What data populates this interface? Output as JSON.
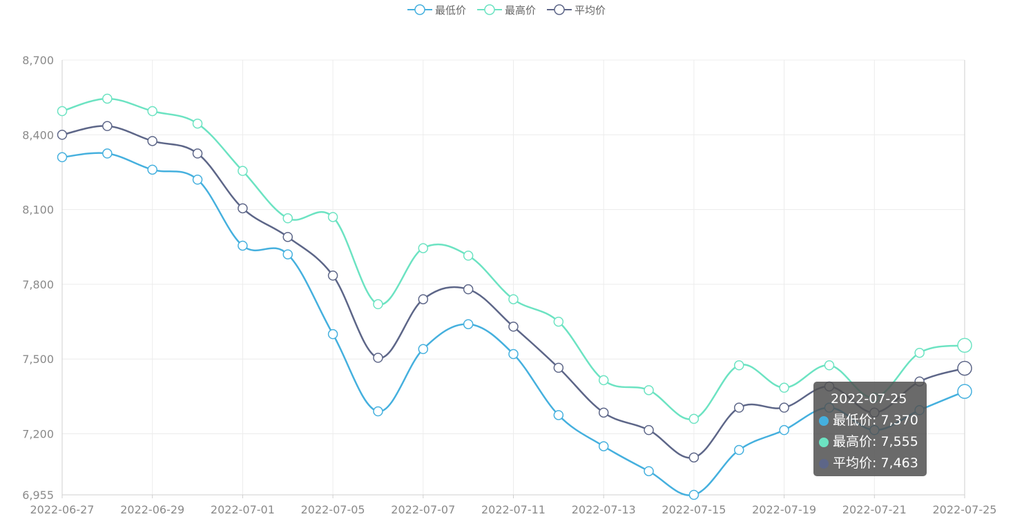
{
  "chart_data": {
    "type": "line",
    "smooth": true,
    "x": [
      "2022-06-27",
      "2022-06-28",
      "2022-06-29",
      "2022-06-30",
      "2022-07-01",
      "2022-07-04",
      "2022-07-05",
      "2022-07-06",
      "2022-07-07",
      "2022-07-08",
      "2022-07-11",
      "2022-07-12",
      "2022-07-13",
      "2022-07-14",
      "2022-07-15",
      "2022-07-18",
      "2022-07-19",
      "2022-07-20",
      "2022-07-21",
      "2022-07-22",
      "2022-07-25"
    ],
    "x_tick_labels": [
      "2022-06-27",
      "2022-06-29",
      "2022-07-01",
      "2022-07-05",
      "2022-07-07",
      "2022-07-11",
      "2022-07-13",
      "2022-07-15",
      "2022-07-19",
      "2022-07-21",
      "2022-07-25"
    ],
    "y_ticks": [
      "8,700",
      "8,400",
      "8,100",
      "7,800",
      "7,500",
      "7,200",
      "6,955"
    ],
    "y_tick_values": [
      8700,
      8400,
      8100,
      7800,
      7500,
      7200,
      6955
    ],
    "ylim": [
      6955,
      8700
    ],
    "grid": true,
    "legend_position": "top-center",
    "series": [
      {
        "name": "最低价",
        "color": "#45b0de",
        "values": [
          8310,
          8325,
          8260,
          8220,
          7955,
          7920,
          7600,
          7290,
          7540,
          7640,
          7520,
          7275,
          7150,
          7050,
          6955,
          7135,
          7215,
          7305,
          7215,
          7295,
          7370
        ]
      },
      {
        "name": "最高价",
        "color": "#6ce3c2",
        "values": [
          8495,
          8545,
          8495,
          8445,
          8255,
          8065,
          8070,
          7720,
          7945,
          7915,
          7740,
          7650,
          7415,
          7375,
          7260,
          7475,
          7385,
          7475,
          7345,
          7525,
          7555
        ]
      },
      {
        "name": "平均价",
        "color": "#5d6688",
        "values": [
          8400,
          8435,
          8375,
          8325,
          8105,
          7990,
          7835,
          7505,
          7740,
          7780,
          7630,
          7465,
          7285,
          7215,
          7105,
          7305,
          7305,
          7390,
          7285,
          7410,
          7463
        ]
      }
    ]
  },
  "tooltip": {
    "title": "2022-07-25",
    "rows": [
      {
        "label": "最低价: 7,370",
        "color": "#45b0de"
      },
      {
        "label": "最高价: 7,555",
        "color": "#6ce3c2"
      },
      {
        "label": "平均价: 7,463",
        "color": "#5d6688"
      }
    ]
  }
}
